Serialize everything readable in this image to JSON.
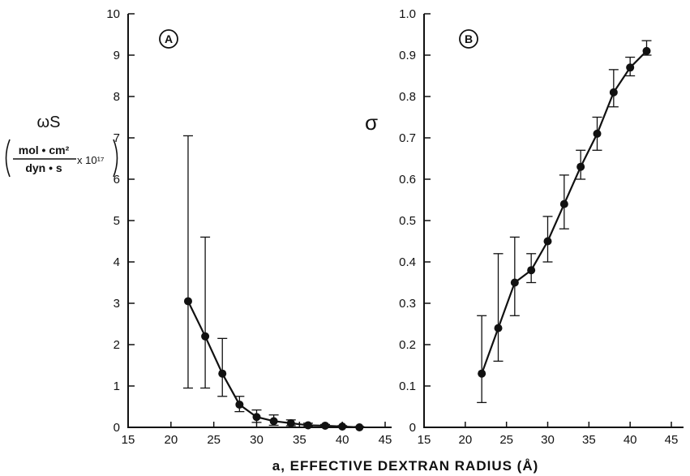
{
  "xlabel": "a, EFFECTIVE DEXTRAN RADIUS (Å)",
  "chart_data": [
    {
      "type": "line",
      "panel": "A",
      "ylabel_main": "ωS",
      "ylabel_num": "mol • cm²",
      "ylabel_den": "dyn • s",
      "ylabel_factor": "x 10¹⁷",
      "xlim": [
        15,
        45
      ],
      "ylim": [
        0,
        10
      ],
      "xticks": [
        15,
        20,
        25,
        30,
        35,
        40,
        45
      ],
      "yticks": [
        0,
        1,
        2,
        3,
        4,
        5,
        6,
        7,
        8,
        9,
        10
      ],
      "x": [
        22,
        24,
        26,
        28,
        30,
        32,
        34,
        36,
        38,
        40,
        42
      ],
      "y": [
        3.05,
        2.2,
        1.3,
        0.55,
        0.25,
        0.15,
        0.1,
        0.05,
        0.04,
        0.02,
        0.0
      ],
      "err_high": [
        7.05,
        4.6,
        2.15,
        0.75,
        0.42,
        0.3,
        0.18,
        0.1,
        0.07,
        0.04,
        0.02
      ],
      "err_low": [
        0.95,
        0.95,
        0.75,
        0.38,
        0.12,
        0.05,
        0.04,
        0.02,
        0.02,
        0.0,
        0.0
      ]
    },
    {
      "type": "line",
      "panel": "B",
      "ylabel_main": "σ",
      "xlim": [
        15,
        45
      ],
      "ylim": [
        0,
        1.0
      ],
      "xticks": [
        15,
        20,
        25,
        30,
        35,
        40,
        45
      ],
      "yticks": [
        "0",
        "0.1",
        "0.2",
        "0.3",
        "0.4",
        "0.5",
        "0.6",
        "0.7",
        "0.8",
        "0.9",
        "1.0"
      ],
      "x": [
        22,
        24,
        26,
        28,
        30,
        32,
        34,
        36,
        38,
        40,
        42
      ],
      "y": [
        0.13,
        0.24,
        0.35,
        0.38,
        0.45,
        0.54,
        0.63,
        0.71,
        0.81,
        0.87,
        0.91
      ],
      "err_high": [
        0.27,
        0.42,
        0.46,
        0.42,
        0.51,
        0.61,
        0.67,
        0.75,
        0.865,
        0.895,
        0.935
      ],
      "err_low": [
        0.06,
        0.16,
        0.27,
        0.35,
        0.4,
        0.48,
        0.6,
        0.67,
        0.775,
        0.85,
        0.9
      ]
    }
  ]
}
